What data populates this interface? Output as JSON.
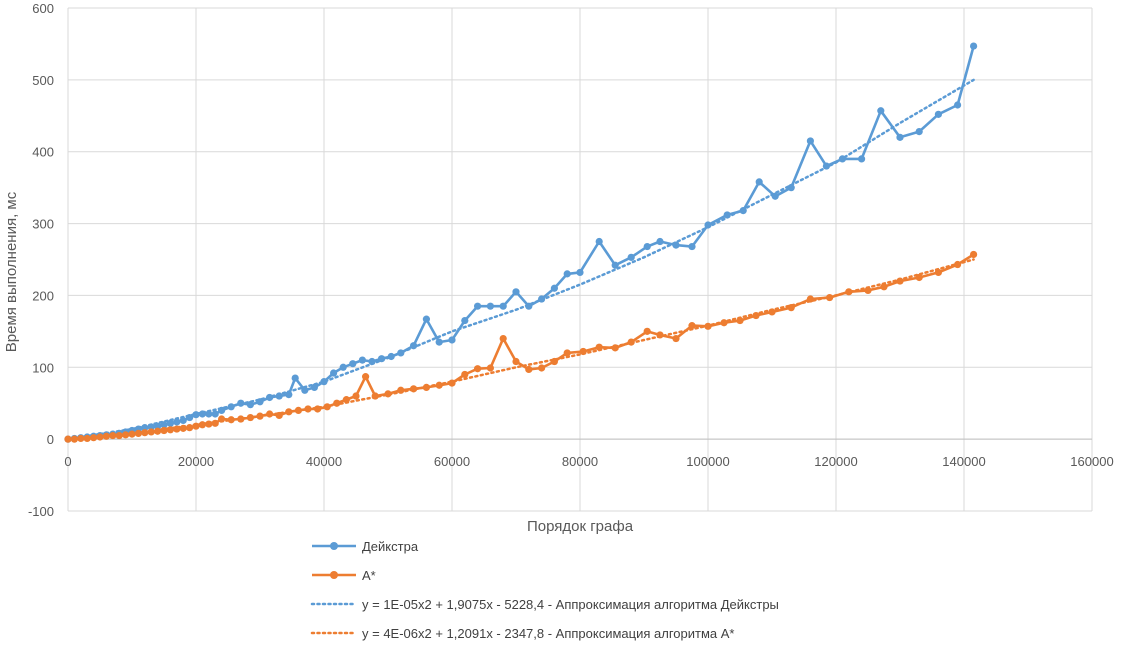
{
  "chart_data": {
    "type": "line",
    "xlabel": "Порядок графа",
    "ylabel": "Время выполнения, мс",
    "xlim": [
      0,
      160000
    ],
    "ylim": [
      -100,
      600
    ],
    "x_ticks": [
      "0",
      "20000",
      "40000",
      "60000",
      "80000",
      "100000",
      "120000",
      "140000",
      "160000"
    ],
    "y_ticks": [
      "600",
      "500",
      "400",
      "300",
      "200",
      "100",
      "0",
      "-100"
    ],
    "grid": true,
    "legend_position": "bottom",
    "series": [
      {
        "name": "Дейкстра",
        "color": "#5B9BD5",
        "marker": true,
        "x": [
          0,
          1000,
          2000,
          3000,
          4000,
          5000,
          6000,
          7000,
          8000,
          9000,
          10000,
          11000,
          12000,
          13000,
          14000,
          15000,
          16000,
          17000,
          18000,
          19000,
          20000,
          21000,
          22000,
          23000,
          24000,
          25500,
          27000,
          28500,
          30000,
          31500,
          33000,
          34500,
          35500,
          37000,
          38500,
          40000,
          41500,
          43000,
          44500,
          46000,
          47500,
          49000,
          50500,
          52000,
          54000,
          56000,
          58000,
          60000,
          62000,
          64000,
          66000,
          68000,
          70000,
          72000,
          74000,
          76000,
          78000,
          80000,
          83000,
          85500,
          88000,
          90500,
          92500,
          95000,
          97500,
          100000,
          103000,
          105500,
          108000,
          110500,
          113000,
          116000,
          118500,
          121000,
          124000,
          127000,
          130000,
          133000,
          136000,
          139000,
          141500
        ],
        "y": [
          0,
          1,
          2,
          3,
          4,
          5,
          6,
          7,
          8,
          10,
          12,
          14,
          16,
          17,
          18,
          20,
          22,
          24,
          26,
          30,
          34,
          35,
          35,
          35,
          40,
          45,
          50,
          48,
          52,
          58,
          60,
          62,
          85,
          68,
          72,
          80,
          92,
          100,
          105,
          110,
          108,
          112,
          115,
          120,
          130,
          167,
          135,
          138,
          165,
          185,
          185,
          185,
          205,
          185,
          195,
          210,
          230,
          232,
          275,
          242,
          253,
          268,
          275,
          270,
          268,
          298,
          312,
          318,
          358,
          338,
          350,
          415,
          380,
          390,
          390,
          457,
          420,
          428,
          452,
          465,
          547
        ]
      },
      {
        "name": "A*",
        "color": "#ED7D31",
        "marker": true,
        "x": [
          0,
          1000,
          2000,
          3000,
          4000,
          5000,
          6000,
          7000,
          8000,
          9000,
          10000,
          11000,
          12000,
          13000,
          14000,
          15000,
          16000,
          17000,
          18000,
          19000,
          20000,
          21000,
          22000,
          23000,
          24000,
          25500,
          27000,
          28500,
          30000,
          31500,
          33000,
          34500,
          36000,
          37500,
          39000,
          40500,
          42000,
          43500,
          45000,
          46500,
          48000,
          50000,
          52000,
          54000,
          56000,
          58000,
          60000,
          62000,
          64000,
          66000,
          68000,
          70000,
          72000,
          74000,
          76000,
          78000,
          80500,
          83000,
          85500,
          88000,
          90500,
          92500,
          95000,
          97500,
          100000,
          102500,
          105000,
          107500,
          110000,
          113000,
          116000,
          119000,
          122000,
          125000,
          127500,
          130000,
          133000,
          136000,
          139000,
          141500
        ],
        "y": [
          0,
          0,
          1,
          1,
          2,
          3,
          4,
          5,
          5,
          6,
          7,
          8,
          9,
          10,
          11,
          12,
          13,
          14,
          15,
          16,
          18,
          20,
          21,
          22,
          28,
          27,
          28,
          30,
          32,
          35,
          33,
          38,
          40,
          42,
          42,
          45,
          50,
          55,
          60,
          87,
          60,
          63,
          68,
          70,
          72,
          75,
          78,
          90,
          98,
          99,
          140,
          108,
          97,
          99,
          108,
          120,
          122,
          128,
          127,
          135,
          150,
          145,
          140,
          158,
          157,
          162,
          165,
          172,
          177,
          183,
          195,
          197,
          205,
          207,
          212,
          220,
          225,
          232,
          243,
          257
        ]
      },
      {
        "name": "y = 1E-05x2 + 1,9075x - 5228,4 - Аппроксимация алгоритма Дейкстры",
        "color": "#5B9BD5",
        "style": "dotted",
        "x": [
          0,
          10000,
          20000,
          30000,
          40000,
          50000,
          60000,
          70000,
          80000,
          90000,
          100000,
          110000,
          120000,
          130000,
          141500
        ],
        "y": [
          0,
          14,
          35,
          55,
          80,
          113,
          150,
          180,
          215,
          253,
          295,
          340,
          385,
          440,
          500
        ]
      },
      {
        "name": "y = 4E-06x2 + 1,2091x - 2347,8 - Аппроксимация алгоритма A*",
        "color": "#ED7D31",
        "style": "dotted",
        "x": [
          0,
          10000,
          20000,
          30000,
          40000,
          50000,
          60000,
          70000,
          80000,
          90000,
          100000,
          110000,
          120000,
          130000,
          141500
        ],
        "y": [
          0,
          8,
          20,
          32,
          45,
          62,
          80,
          100,
          118,
          138,
          158,
          180,
          200,
          222,
          250
        ]
      }
    ]
  }
}
